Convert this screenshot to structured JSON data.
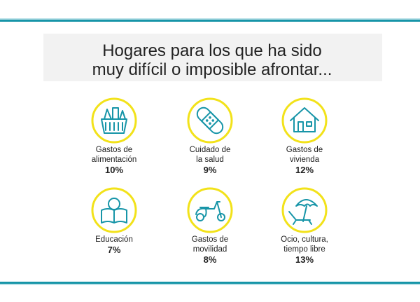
{
  "title": [
    "Hogares para los que ha sido",
    "muy difícil o imposible afrontar..."
  ],
  "items": [
    {
      "label": [
        "Gastos de",
        "alimentación"
      ],
      "value": "10%"
    },
    {
      "label": [
        "Cuidado de",
        "la salud"
      ],
      "value": "9%"
    },
    {
      "label": [
        "Gastos de",
        "vivienda"
      ],
      "value": "12%"
    },
    {
      "label": [
        "Educación"
      ],
      "value": "7%"
    },
    {
      "label": [
        "Gastos de",
        "movilidad"
      ],
      "value": "8%"
    },
    {
      "label": [
        "Ocio, cultura,",
        "tiempo libre"
      ],
      "value": "13%"
    }
  ]
}
